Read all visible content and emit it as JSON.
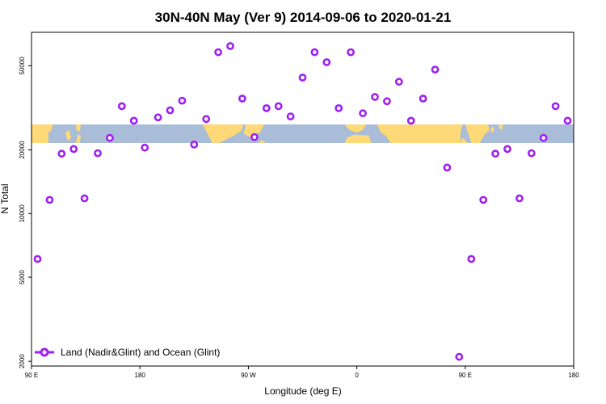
{
  "chart_data": {
    "type": "scatter",
    "title": "30N-40N May (Ver 9)   2014-09-06 to 2020-01-21",
    "xlabel": "Longitude (deg E)",
    "ylabel": "N Total",
    "x_scale": "linear",
    "y_scale": "log",
    "xlim": [
      90,
      540
    ],
    "ylim": [
      1900,
      72000
    ],
    "x_ticks": [
      {
        "value": 90,
        "label": "90 E"
      },
      {
        "value": 180,
        "label": "180"
      },
      {
        "value": 270,
        "label": "90 W"
      },
      {
        "value": 360,
        "label": "0"
      },
      {
        "value": 450,
        "label": "90 E"
      },
      {
        "value": 540,
        "label": "180"
      }
    ],
    "y_ticks": [
      {
        "value": 2000,
        "label": "2000"
      },
      {
        "value": 5000,
        "label": "5000"
      },
      {
        "value": 10000,
        "label": "10000"
      },
      {
        "value": 20000,
        "label": "20000"
      },
      {
        "value": 50000,
        "label": "50000"
      }
    ],
    "grid": false,
    "legend": {
      "position": "bottom-left"
    },
    "series": [
      {
        "name": "Land (Nadir&Glint) and Ocean (Glint)",
        "color": "#a020f0",
        "marker": "open-circle",
        "x": [
          95,
          105,
          115,
          125,
          134,
          145,
          155,
          165,
          175,
          184,
          195,
          205,
          215,
          225,
          235,
          245,
          255,
          265,
          275,
          285,
          295,
          305,
          315,
          325,
          335,
          345,
          355,
          365,
          375,
          385,
          395,
          405,
          415,
          425,
          435,
          445,
          455,
          465,
          475,
          485,
          495,
          505,
          515,
          525,
          535
        ],
        "y": [
          6100,
          11600,
          19200,
          20200,
          11800,
          19300,
          22800,
          32200,
          27500,
          20500,
          28500,
          30800,
          34200,
          21200,
          28000,
          58000,
          62000,
          35000,
          23000,
          31500,
          32200,
          28800,
          44000,
          58000,
          52000,
          31500,
          58000,
          29800,
          35600,
          34000,
          42000,
          27500,
          35000,
          48000,
          16500,
          2100,
          6100,
          11600,
          19200,
          20200,
          11800,
          19300,
          22800,
          32200,
          27500
        ]
      }
    ],
    "background_map": {
      "ocean_color": "#a9bcd8",
      "land_color": "#ffd878"
    }
  }
}
